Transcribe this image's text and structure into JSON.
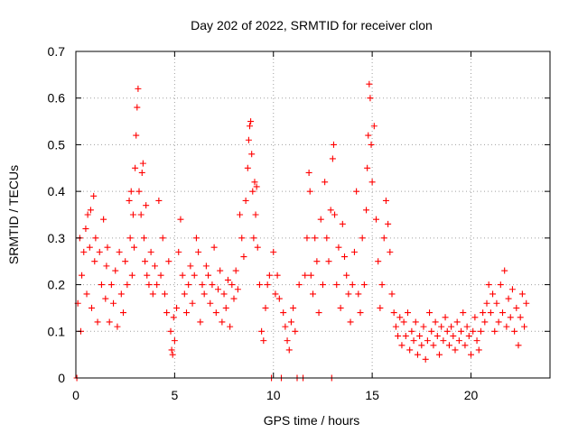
{
  "chart_data": {
    "type": "scatter",
    "title": "Day 202 of 2022, SRMTID for receiver clon",
    "xlabel": "GPS time / hours",
    "ylabel": "SRMTID / TECUs",
    "xlim": [
      0,
      24
    ],
    "ylim": [
      0,
      0.7
    ],
    "x_ticks": [
      0,
      5,
      10,
      15,
      20
    ],
    "x_tick_labels": [
      "0",
      "5",
      "10",
      "15",
      "20"
    ],
    "y_ticks": [
      0,
      0.1,
      0.2,
      0.3,
      0.4,
      0.5,
      0.6,
      0.7
    ],
    "y_tick_labels": [
      "0",
      "0.1",
      "0.2",
      "0.3",
      "0.4",
      "0.5",
      "0.6",
      "0.7"
    ],
    "grid": true,
    "marker": "+",
    "series": [
      {
        "name": "SRMTID",
        "color": "#ff0000",
        "points": [
          [
            0.05,
            0.0
          ],
          [
            0.1,
            0.16
          ],
          [
            0.2,
            0.3
          ],
          [
            0.25,
            0.1
          ],
          [
            0.3,
            0.22
          ],
          [
            0.4,
            0.27
          ],
          [
            0.5,
            0.32
          ],
          [
            0.55,
            0.18
          ],
          [
            0.6,
            0.35
          ],
          [
            0.7,
            0.28
          ],
          [
            0.75,
            0.36
          ],
          [
            0.8,
            0.15
          ],
          [
            0.9,
            0.39
          ],
          [
            0.95,
            0.25
          ],
          [
            1.0,
            0.3
          ],
          [
            1.1,
            0.12
          ],
          [
            1.2,
            0.27
          ],
          [
            1.3,
            0.2
          ],
          [
            1.4,
            0.34
          ],
          [
            1.5,
            0.17
          ],
          [
            1.55,
            0.24
          ],
          [
            1.6,
            0.28
          ],
          [
            1.7,
            0.12
          ],
          [
            1.8,
            0.2
          ],
          [
            1.9,
            0.16
          ],
          [
            2.0,
            0.23
          ],
          [
            2.1,
            0.11
          ],
          [
            2.2,
            0.27
          ],
          [
            2.3,
            0.18
          ],
          [
            2.4,
            0.14
          ],
          [
            2.5,
            0.25
          ],
          [
            2.6,
            0.2
          ],
          [
            2.7,
            0.38
          ],
          [
            2.75,
            0.3
          ],
          [
            2.8,
            0.4
          ],
          [
            2.85,
            0.22
          ],
          [
            2.9,
            0.35
          ],
          [
            2.95,
            0.28
          ],
          [
            3.0,
            0.45
          ],
          [
            3.05,
            0.52
          ],
          [
            3.1,
            0.58
          ],
          [
            3.15,
            0.62
          ],
          [
            3.2,
            0.4
          ],
          [
            3.3,
            0.35
          ],
          [
            3.35,
            0.44
          ],
          [
            3.4,
            0.46
          ],
          [
            3.45,
            0.3
          ],
          [
            3.5,
            0.25
          ],
          [
            3.55,
            0.37
          ],
          [
            3.6,
            0.22
          ],
          [
            3.7,
            0.2
          ],
          [
            3.8,
            0.27
          ],
          [
            3.9,
            0.18
          ],
          [
            4.0,
            0.24
          ],
          [
            4.1,
            0.2
          ],
          [
            4.2,
            0.38
          ],
          [
            4.3,
            0.22
          ],
          [
            4.4,
            0.3
          ],
          [
            4.5,
            0.18
          ],
          [
            4.6,
            0.14
          ],
          [
            4.7,
            0.25
          ],
          [
            4.8,
            0.1
          ],
          [
            4.85,
            0.06
          ],
          [
            4.9,
            0.05
          ],
          [
            4.95,
            0.13
          ],
          [
            5.0,
            0.08
          ],
          [
            5.1,
            0.15
          ],
          [
            5.2,
            0.27
          ],
          [
            5.3,
            0.34
          ],
          [
            5.4,
            0.22
          ],
          [
            5.5,
            0.18
          ],
          [
            5.6,
            0.14
          ],
          [
            5.7,
            0.2
          ],
          [
            5.8,
            0.24
          ],
          [
            5.9,
            0.16
          ],
          [
            6.0,
            0.22
          ],
          [
            6.1,
            0.3
          ],
          [
            6.2,
            0.27
          ],
          [
            6.3,
            0.12
          ],
          [
            6.4,
            0.2
          ],
          [
            6.5,
            0.18
          ],
          [
            6.6,
            0.24
          ],
          [
            6.7,
            0.22
          ],
          [
            6.8,
            0.16
          ],
          [
            6.9,
            0.2
          ],
          [
            7.0,
            0.28
          ],
          [
            7.1,
            0.14
          ],
          [
            7.2,
            0.19
          ],
          [
            7.3,
            0.23
          ],
          [
            7.4,
            0.12
          ],
          [
            7.5,
            0.18
          ],
          [
            7.6,
            0.15
          ],
          [
            7.7,
            0.21
          ],
          [
            7.8,
            0.11
          ],
          [
            7.9,
            0.2
          ],
          [
            8.0,
            0.17
          ],
          [
            8.1,
            0.23
          ],
          [
            8.2,
            0.19
          ],
          [
            8.3,
            0.35
          ],
          [
            8.4,
            0.3
          ],
          [
            8.5,
            0.26
          ],
          [
            8.6,
            0.38
          ],
          [
            8.7,
            0.45
          ],
          [
            8.75,
            0.51
          ],
          [
            8.8,
            0.54
          ],
          [
            8.85,
            0.55
          ],
          [
            8.9,
            0.48
          ],
          [
            8.95,
            0.4
          ],
          [
            9.0,
            0.3
          ],
          [
            9.05,
            0.42
          ],
          [
            9.1,
            0.35
          ],
          [
            9.15,
            0.41
          ],
          [
            9.2,
            0.28
          ],
          [
            9.3,
            0.2
          ],
          [
            9.4,
            0.1
          ],
          [
            9.5,
            0.08
          ],
          [
            9.6,
            0.15
          ],
          [
            9.7,
            0.2
          ],
          [
            9.8,
            0.22
          ],
          [
            9.9,
            0.0
          ],
          [
            10.0,
            0.27
          ],
          [
            10.1,
            0.18
          ],
          [
            10.2,
            0.22
          ],
          [
            10.3,
            0.17
          ],
          [
            10.4,
            0.0
          ],
          [
            10.5,
            0.14
          ],
          [
            10.6,
            0.11
          ],
          [
            10.7,
            0.08
          ],
          [
            10.8,
            0.06
          ],
          [
            10.9,
            0.12
          ],
          [
            11.0,
            0.15
          ],
          [
            11.1,
            0.1
          ],
          [
            11.2,
            0.0
          ],
          [
            11.3,
            0.2
          ],
          [
            11.5,
            0.0
          ],
          [
            11.6,
            0.22
          ],
          [
            11.7,
            0.3
          ],
          [
            11.8,
            0.44
          ],
          [
            11.85,
            0.4
          ],
          [
            11.9,
            0.22
          ],
          [
            12.0,
            0.18
          ],
          [
            12.1,
            0.3
          ],
          [
            12.2,
            0.25
          ],
          [
            12.3,
            0.14
          ],
          [
            12.4,
            0.34
          ],
          [
            12.5,
            0.2
          ],
          [
            12.6,
            0.42
          ],
          [
            12.7,
            0.3
          ],
          [
            12.8,
            0.25
          ],
          [
            12.9,
            0.36
          ],
          [
            12.95,
            0.0
          ],
          [
            13.0,
            0.47
          ],
          [
            13.05,
            0.5
          ],
          [
            13.1,
            0.35
          ],
          [
            13.2,
            0.2
          ],
          [
            13.3,
            0.28
          ],
          [
            13.4,
            0.15
          ],
          [
            13.5,
            0.33
          ],
          [
            13.6,
            0.26
          ],
          [
            13.7,
            0.22
          ],
          [
            13.8,
            0.18
          ],
          [
            13.9,
            0.12
          ],
          [
            14.0,
            0.2
          ],
          [
            14.1,
            0.27
          ],
          [
            14.2,
            0.4
          ],
          [
            14.3,
            0.18
          ],
          [
            14.4,
            0.14
          ],
          [
            14.5,
            0.3
          ],
          [
            14.6,
            0.2
          ],
          [
            14.7,
            0.36
          ],
          [
            14.75,
            0.45
          ],
          [
            14.8,
            0.52
          ],
          [
            14.85,
            0.63
          ],
          [
            14.9,
            0.6
          ],
          [
            14.95,
            0.5
          ],
          [
            15.0,
            0.42
          ],
          [
            15.1,
            0.54
          ],
          [
            15.2,
            0.34
          ],
          [
            15.3,
            0.25
          ],
          [
            15.4,
            0.15
          ],
          [
            15.5,
            0.2
          ],
          [
            15.6,
            0.3
          ],
          [
            15.7,
            0.38
          ],
          [
            15.8,
            0.33
          ],
          [
            15.9,
            0.27
          ],
          [
            16.0,
            0.18
          ],
          [
            16.1,
            0.14
          ],
          [
            16.2,
            0.11
          ],
          [
            16.3,
            0.09
          ],
          [
            16.4,
            0.13
          ],
          [
            16.5,
            0.07
          ],
          [
            16.6,
            0.12
          ],
          [
            16.7,
            0.09
          ],
          [
            16.8,
            0.14
          ],
          [
            16.9,
            0.06
          ],
          [
            17.0,
            0.1
          ],
          [
            17.1,
            0.08
          ],
          [
            17.2,
            0.12
          ],
          [
            17.3,
            0.05
          ],
          [
            17.4,
            0.09
          ],
          [
            17.5,
            0.07
          ],
          [
            17.6,
            0.11
          ],
          [
            17.7,
            0.04
          ],
          [
            17.8,
            0.08
          ],
          [
            17.9,
            0.14
          ],
          [
            18.0,
            0.1
          ],
          [
            18.1,
            0.07
          ],
          [
            18.2,
            0.12
          ],
          [
            18.3,
            0.09
          ],
          [
            18.4,
            0.05
          ],
          [
            18.5,
            0.11
          ],
          [
            18.6,
            0.08
          ],
          [
            18.7,
            0.13
          ],
          [
            18.8,
            0.1
          ],
          [
            18.9,
            0.07
          ],
          [
            19.0,
            0.11
          ],
          [
            19.1,
            0.09
          ],
          [
            19.2,
            0.06
          ],
          [
            19.3,
            0.12
          ],
          [
            19.4,
            0.08
          ],
          [
            19.5,
            0.1
          ],
          [
            19.6,
            0.14
          ],
          [
            19.7,
            0.07
          ],
          [
            19.8,
            0.11
          ],
          [
            19.9,
            0.09
          ],
          [
            20.0,
            0.05
          ],
          [
            20.1,
            0.1
          ],
          [
            20.2,
            0.13
          ],
          [
            20.3,
            0.08
          ],
          [
            20.4,
            0.06
          ],
          [
            20.5,
            0.1
          ],
          [
            20.6,
            0.14
          ],
          [
            20.7,
            0.12
          ],
          [
            20.8,
            0.16
          ],
          [
            20.9,
            0.2
          ],
          [
            21.0,
            0.14
          ],
          [
            21.1,
            0.18
          ],
          [
            21.2,
            0.1
          ],
          [
            21.3,
            0.16
          ],
          [
            21.4,
            0.12
          ],
          [
            21.5,
            0.2
          ],
          [
            21.6,
            0.14
          ],
          [
            21.7,
            0.23
          ],
          [
            21.8,
            0.11
          ],
          [
            21.9,
            0.17
          ],
          [
            22.0,
            0.13
          ],
          [
            22.1,
            0.19
          ],
          [
            22.2,
            0.1
          ],
          [
            22.3,
            0.15
          ],
          [
            22.4,
            0.07
          ],
          [
            22.5,
            0.13
          ],
          [
            22.6,
            0.18
          ],
          [
            22.7,
            0.11
          ],
          [
            22.8,
            0.16
          ]
        ]
      }
    ]
  }
}
